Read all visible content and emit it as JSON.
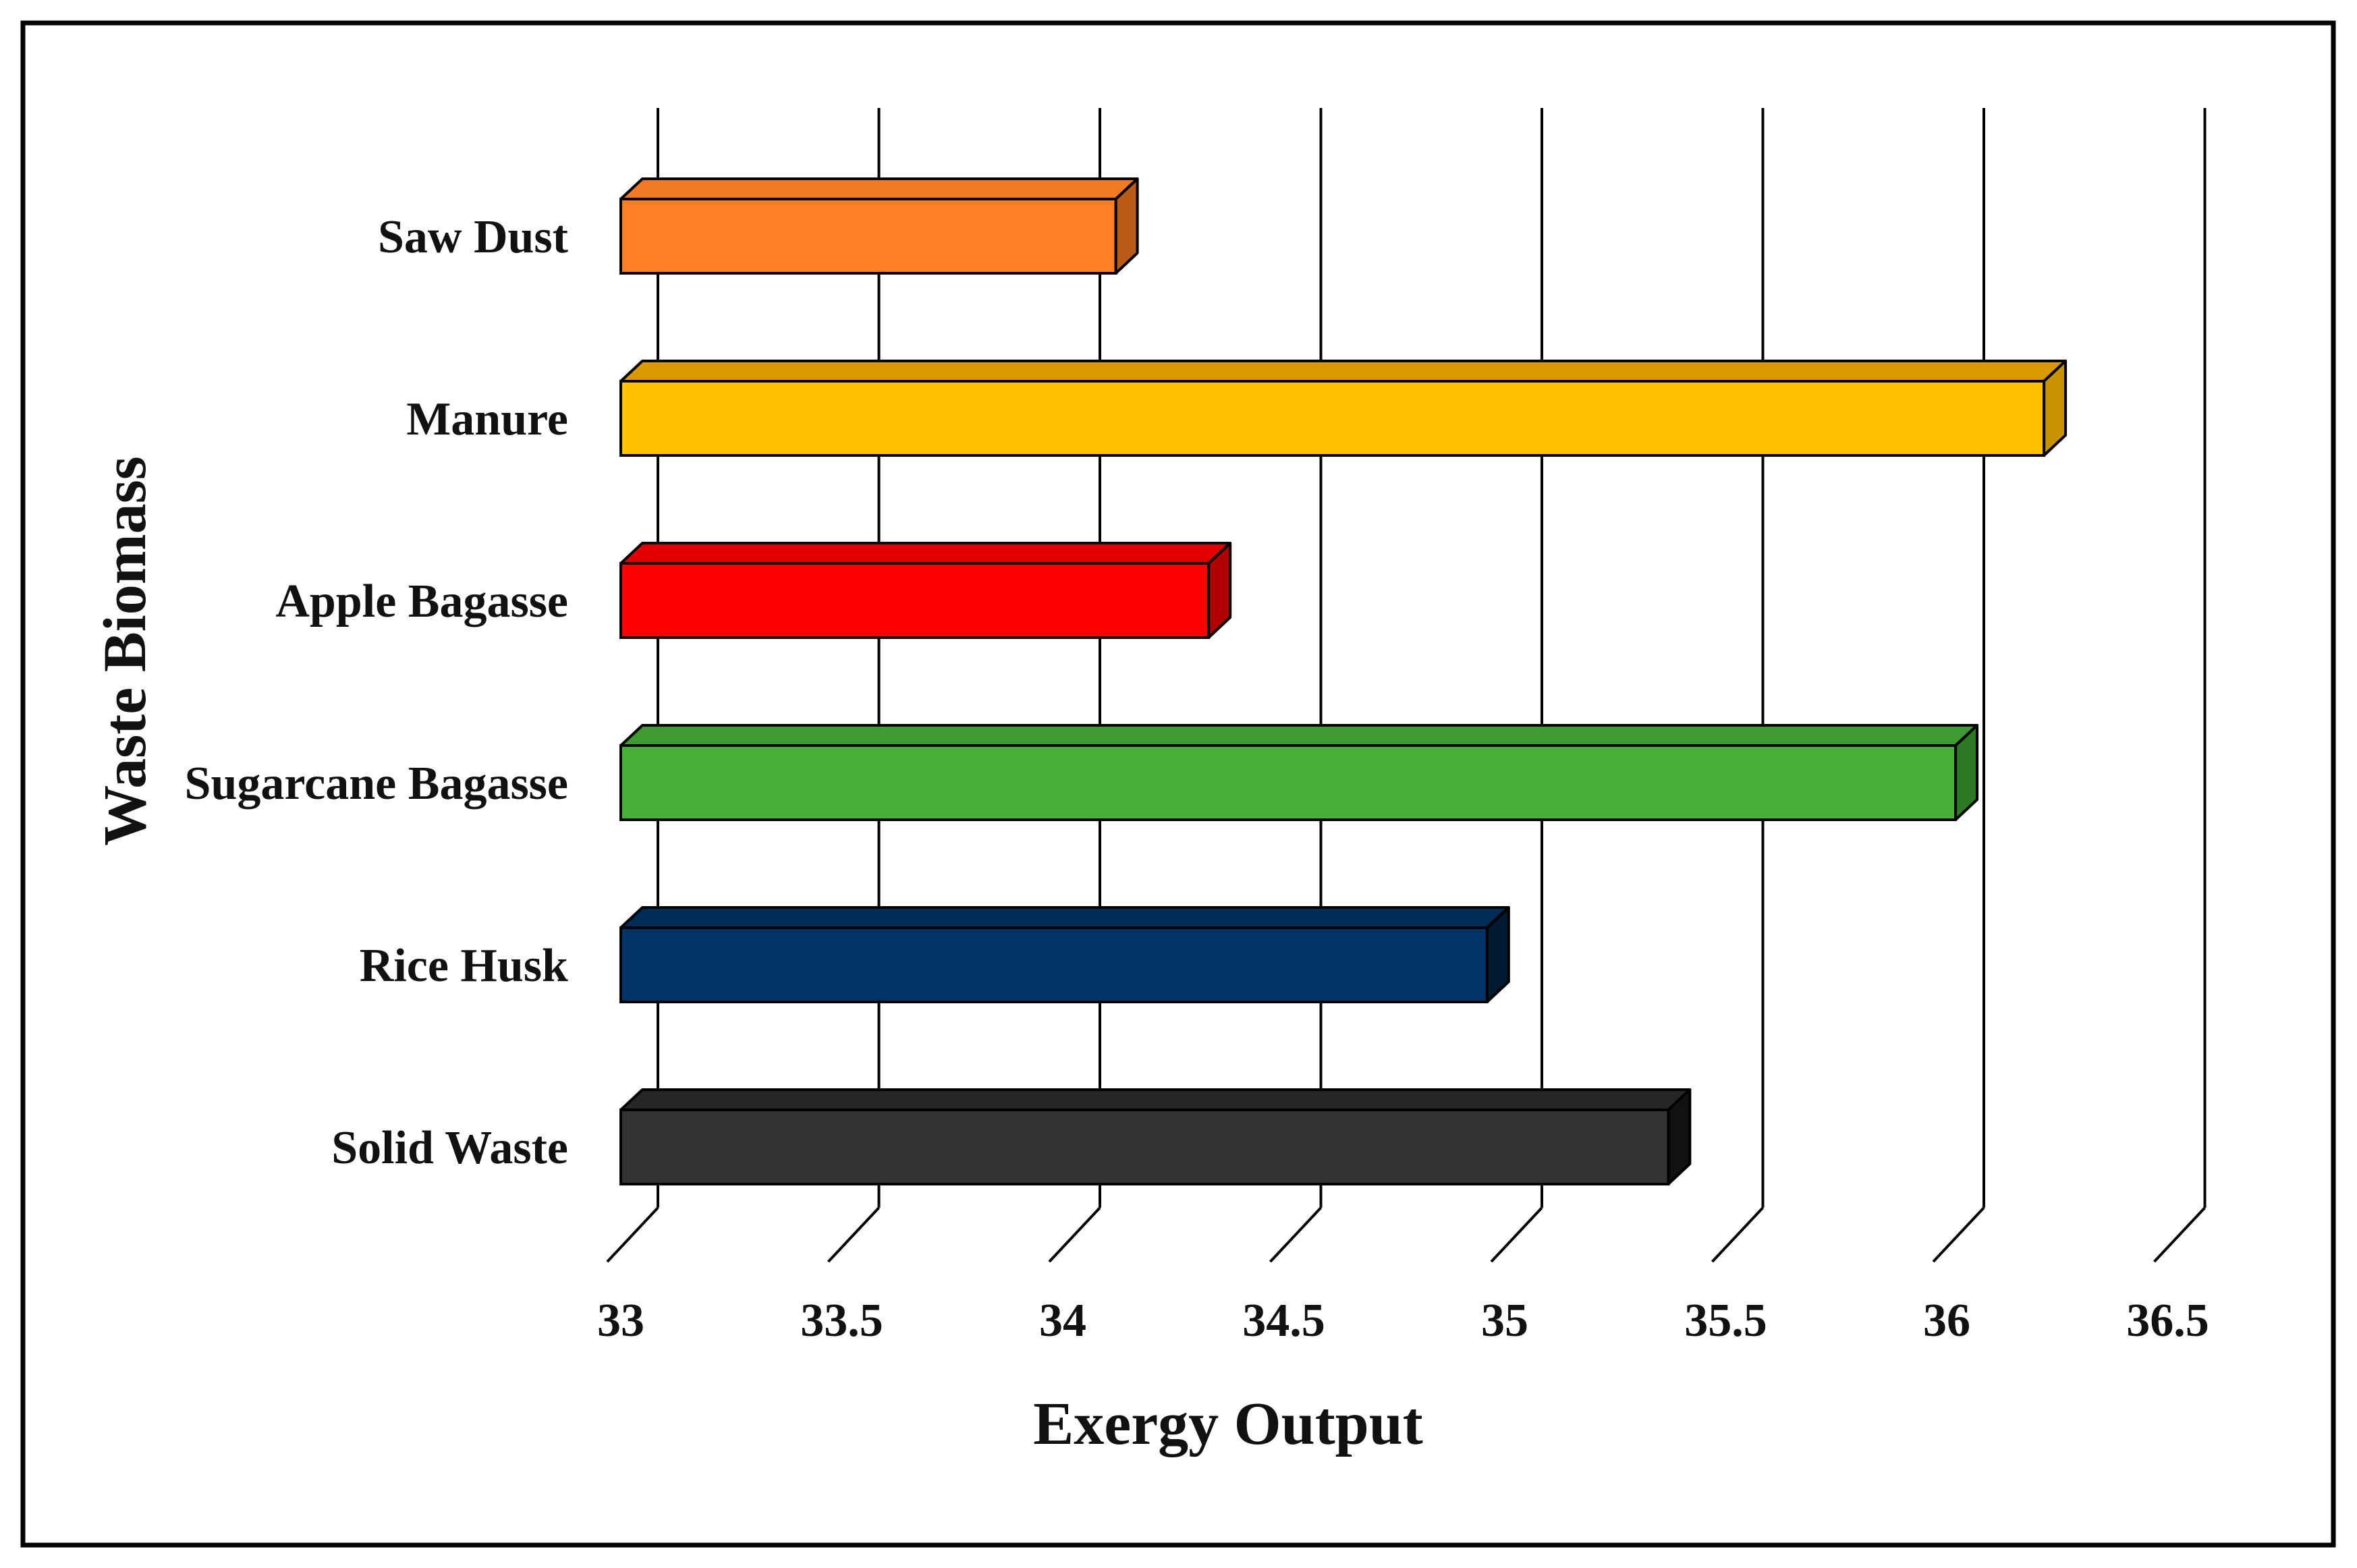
{
  "chart_data": {
    "type": "bar",
    "orientation": "horizontal",
    "style": "3d",
    "categories": [
      "Saw Dust",
      "Manure",
      "Apple Bagasse",
      "Sugarcane Bagasse",
      "Rice Husk",
      "Solid Waste"
    ],
    "values": [
      34.12,
      36.22,
      34.33,
      36.02,
      34.96,
      35.37
    ],
    "colors": [
      "#FF7F27",
      "#FFC000",
      "#FF0000",
      "#46B039",
      "#003366",
      "#333333"
    ],
    "side_colors": [
      "#B85A18",
      "#C89200",
      "#B00000",
      "#2E7A24",
      "#001A33",
      "#111111"
    ],
    "top_colors": [
      "#F07A26",
      "#D99A00",
      "#E00000",
      "#3E9A33",
      "#002B55",
      "#262626"
    ],
    "xlabel": "Exergy Output",
    "ylabel": "Waste Biomass",
    "xlim": [
      33,
      36.5
    ],
    "xticks": [
      "33",
      "33.5",
      "34",
      "34.5",
      "35",
      "35.5",
      "36",
      "36.5"
    ],
    "grid": true
  }
}
